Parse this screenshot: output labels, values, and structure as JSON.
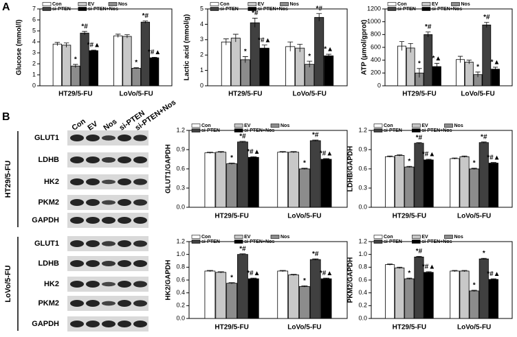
{
  "panel_labels": [
    "A",
    "B"
  ],
  "blot": {
    "lanes": [
      "Con",
      "EV",
      "Nos",
      "si-PTEN",
      "si-PTEN+Nos"
    ],
    "groups": [
      {
        "name": "HT29/5-FU",
        "proteins": [
          "GLUT1",
          "LDHB",
          "HK2",
          "PKM2",
          "GAPDH"
        ]
      },
      {
        "name": "LoVo/5-FU",
        "proteins": [
          "GLUT1",
          "LDHB",
          "HK2",
          "PKM2",
          "GAPDH"
        ]
      }
    ]
  },
  "chart_data": [
    {
      "type": "bar",
      "y_label": "Glucose (mmol/l)",
      "categories": [
        "HT29/5-FU",
        "LoVo/5-FU"
      ],
      "ylim": [
        0,
        7
      ],
      "yticks": [
        0,
        1,
        2,
        3,
        4,
        5,
        6,
        7
      ],
      "series": [
        {
          "name": "Con",
          "color": "#ffffff",
          "values": [
            3.8,
            4.55
          ],
          "errors": [
            0.15,
            0.15
          ],
          "annotations": [
            null,
            null
          ]
        },
        {
          "name": "EV",
          "color": "#c8c8c8",
          "values": [
            3.7,
            4.5
          ],
          "errors": [
            0.2,
            0.15
          ],
          "annotations": [
            null,
            null
          ]
        },
        {
          "name": "Nos",
          "color": "#8c8c8c",
          "values": [
            1.8,
            1.6
          ],
          "errors": [
            0.15,
            0.05
          ],
          "annotations": [
            "*",
            "*"
          ]
        },
        {
          "name": "si-PTEN",
          "color": "#404040",
          "values": [
            4.8,
            5.8
          ],
          "errors": [
            0.15,
            0.1
          ],
          "annotations": [
            "*#",
            "*#"
          ]
        },
        {
          "name": "si-PTEN+Nos",
          "color": "#000000",
          "values": [
            3.2,
            2.55
          ],
          "errors": [
            0.05,
            0.05
          ],
          "annotations": [
            "*#▲",
            "*#▲"
          ]
        }
      ]
    },
    {
      "type": "bar",
      "y_label": "Lactic acid (mmol/g)",
      "categories": [
        "HT29/5-FU",
        "LoVo/5-FU"
      ],
      "ylim": [
        0,
        5
      ],
      "yticks": [
        0,
        1,
        2,
        3,
        4,
        5
      ],
      "series": [
        {
          "name": "Con",
          "color": "#ffffff",
          "values": [
            2.85,
            2.55
          ],
          "errors": [
            0.2,
            0.3
          ],
          "annotations": [
            null,
            null
          ]
        },
        {
          "name": "EV",
          "color": "#c8c8c8",
          "values": [
            3.1,
            2.45
          ],
          "errors": [
            0.25,
            0.25
          ],
          "annotations": [
            null,
            null
          ]
        },
        {
          "name": "Nos",
          "color": "#8c8c8c",
          "values": [
            1.7,
            1.4
          ],
          "errors": [
            0.2,
            0.2
          ],
          "annotations": [
            "*",
            "*"
          ]
        },
        {
          "name": "si-PTEN",
          "color": "#404040",
          "values": [
            4.1,
            4.45
          ],
          "errors": [
            0.3,
            0.25
          ],
          "annotations": [
            "*#",
            "*#"
          ]
        },
        {
          "name": "si-PTEN+Nos",
          "color": "#000000",
          "values": [
            2.45,
            1.95
          ],
          "errors": [
            0.2,
            0.1
          ],
          "annotations": [
            "*#▲",
            "*▲"
          ]
        }
      ]
    },
    {
      "type": "bar",
      "y_label": "ATP (μmol/gprot)",
      "categories": [
        "HT29/5-FU",
        "LoVo/5-FU"
      ],
      "ylim": [
        0,
        1200
      ],
      "yticks": [
        0,
        200,
        400,
        600,
        800,
        1000,
        1200
      ],
      "series": [
        {
          "name": "Con",
          "color": "#ffffff",
          "values": [
            620,
            410
          ],
          "errors": [
            70,
            50
          ],
          "annotations": [
            null,
            null
          ]
        },
        {
          "name": "EV",
          "color": "#c8c8c8",
          "values": [
            590,
            370
          ],
          "errors": [
            70,
            30
          ],
          "annotations": [
            null,
            null
          ]
        },
        {
          "name": "Nos",
          "color": "#8c8c8c",
          "values": [
            200,
            175
          ],
          "errors": [
            70,
            40
          ],
          "annotations": [
            "*",
            "*"
          ]
        },
        {
          "name": "si-PTEN",
          "color": "#404040",
          "values": [
            800,
            950
          ],
          "errors": [
            40,
            40
          ],
          "annotations": [
            "*#",
            "*#"
          ]
        },
        {
          "name": "si-PTEN+Nos",
          "color": "#000000",
          "values": [
            300,
            260
          ],
          "errors": [
            50,
            30
          ],
          "annotations": [
            "*▲",
            "*▲"
          ]
        }
      ]
    },
    {
      "type": "bar",
      "y_label": "GLUT1/GAPDH",
      "categories": [
        "HT29/5-FU",
        "LoVo/5-FU"
      ],
      "ylim": [
        0,
        1.2
      ],
      "yticks": [
        {
          "value": 0,
          "label": "0.0"
        },
        0.3,
        0.6,
        0.9,
        1.2
      ],
      "series": [
        {
          "name": "Con",
          "color": "#ffffff",
          "values": [
            0.85,
            0.86
          ],
          "errors": [
            0.01,
            0.01
          ],
          "annotations": [
            null,
            null
          ]
        },
        {
          "name": "EV",
          "color": "#c8c8c8",
          "values": [
            0.86,
            0.86
          ],
          "errors": [
            0.01,
            0.01
          ],
          "annotations": [
            null,
            null
          ]
        },
        {
          "name": "Nos",
          "color": "#8c8c8c",
          "values": [
            0.68,
            0.6
          ],
          "errors": [
            0.01,
            0.01
          ],
          "annotations": [
            "*",
            "*"
          ]
        },
        {
          "name": "si-PTEN",
          "color": "#404040",
          "values": [
            1.02,
            1.04
          ],
          "errors": [
            0.01,
            0.01
          ],
          "annotations": [
            "*#",
            "*#"
          ]
        },
        {
          "name": "si-PTEN+Nos",
          "color": "#000000",
          "values": [
            0.78,
            0.75
          ],
          "errors": [
            0.01,
            0.01
          ],
          "annotations": [
            "*#▲",
            "*#▲"
          ]
        }
      ]
    },
    {
      "type": "bar",
      "y_label": "LDHB/GAPDH",
      "categories": [
        "HT29/5-FU",
        "LoVo/5-FU"
      ],
      "ylim": [
        0,
        1.2
      ],
      "yticks": [
        {
          "value": 0,
          "label": "0.0"
        },
        0.3,
        0.6,
        0.9,
        1.2
      ],
      "series": [
        {
          "name": "Con",
          "color": "#ffffff",
          "values": [
            0.79,
            0.76
          ],
          "errors": [
            0.01,
            0.01
          ],
          "annotations": [
            null,
            null
          ]
        },
        {
          "name": "EV",
          "color": "#c8c8c8",
          "values": [
            0.81,
            0.79
          ],
          "errors": [
            0.01,
            0.01
          ],
          "annotations": [
            null,
            null
          ]
        },
        {
          "name": "Nos",
          "color": "#8c8c8c",
          "values": [
            0.63,
            0.6
          ],
          "errors": [
            0.01,
            0.01
          ],
          "annotations": [
            "*",
            "*"
          ]
        },
        {
          "name": "si-PTEN",
          "color": "#404040",
          "values": [
            1.0,
            1.01
          ],
          "errors": [
            0.01,
            0.01
          ],
          "annotations": [
            "*#",
            "*#"
          ]
        },
        {
          "name": "si-PTEN+Nos",
          "color": "#000000",
          "values": [
            0.74,
            0.69
          ],
          "errors": [
            0.01,
            0.01
          ],
          "annotations": [
            "*#▲",
            "*#▲"
          ]
        }
      ]
    },
    {
      "type": "bar",
      "y_label": "HK2/GAPDH",
      "categories": [
        "HT29/5-FU",
        "LoVo/5-FU"
      ],
      "ylim": [
        0,
        1.2
      ],
      "yticks": [
        {
          "value": 0,
          "label": "0.0"
        },
        0.2,
        0.4,
        0.6,
        0.8,
        {
          "value": 1,
          "label": "1.0"
        },
        1.2
      ],
      "series": [
        {
          "name": "Con",
          "color": "#ffffff",
          "values": [
            0.74,
            0.74
          ],
          "errors": [
            0.01,
            0.01
          ],
          "annotations": [
            null,
            null
          ]
        },
        {
          "name": "EV",
          "color": "#c8c8c8",
          "values": [
            0.72,
            0.68
          ],
          "errors": [
            0.01,
            0.01
          ],
          "annotations": [
            null,
            null
          ]
        },
        {
          "name": "Nos",
          "color": "#8c8c8c",
          "values": [
            0.55,
            0.5
          ],
          "errors": [
            0.01,
            0.01
          ],
          "annotations": [
            "*",
            "*"
          ]
        },
        {
          "name": "si-PTEN",
          "color": "#404040",
          "values": [
            1.0,
            0.92
          ],
          "errors": [
            0.01,
            0.01
          ],
          "annotations": [
            "*#",
            "*#"
          ]
        },
        {
          "name": "si-PTEN+Nos",
          "color": "#000000",
          "values": [
            0.62,
            0.62
          ],
          "errors": [
            0.01,
            0.01
          ],
          "annotations": [
            "*#▲",
            "*#▲"
          ]
        }
      ]
    },
    {
      "type": "bar",
      "y_label": "PKM2/GAPDH",
      "categories": [
        "HT29/5-FU",
        "LoVo/5-FU"
      ],
      "ylim": [
        0,
        1.2
      ],
      "yticks": [
        {
          "value": 0,
          "label": "0.0"
        },
        0.2,
        0.4,
        0.6,
        0.8,
        {
          "value": 1,
          "label": "1.0"
        },
        1.2
      ],
      "series": [
        {
          "name": "Con",
          "color": "#ffffff",
          "values": [
            0.84,
            0.74
          ],
          "errors": [
            0.01,
            0.01
          ],
          "annotations": [
            null,
            null
          ]
        },
        {
          "name": "EV",
          "color": "#c8c8c8",
          "values": [
            0.79,
            0.74
          ],
          "errors": [
            0.01,
            0.01
          ],
          "annotations": [
            null,
            null
          ]
        },
        {
          "name": "Nos",
          "color": "#8c8c8c",
          "values": [
            0.62,
            0.43
          ],
          "errors": [
            0.01,
            0.01
          ],
          "annotations": [
            "*",
            "*"
          ]
        },
        {
          "name": "si-PTEN",
          "color": "#404040",
          "values": [
            0.96,
            0.93
          ],
          "errors": [
            0.01,
            0.01
          ],
          "annotations": [
            "*#",
            "*"
          ]
        },
        {
          "name": "si-PTEN+Nos",
          "color": "#000000",
          "values": [
            0.72,
            0.61
          ],
          "errors": [
            0.01,
            0.01
          ],
          "annotations": [
            "*#▲",
            "*#▲"
          ]
        }
      ]
    }
  ]
}
